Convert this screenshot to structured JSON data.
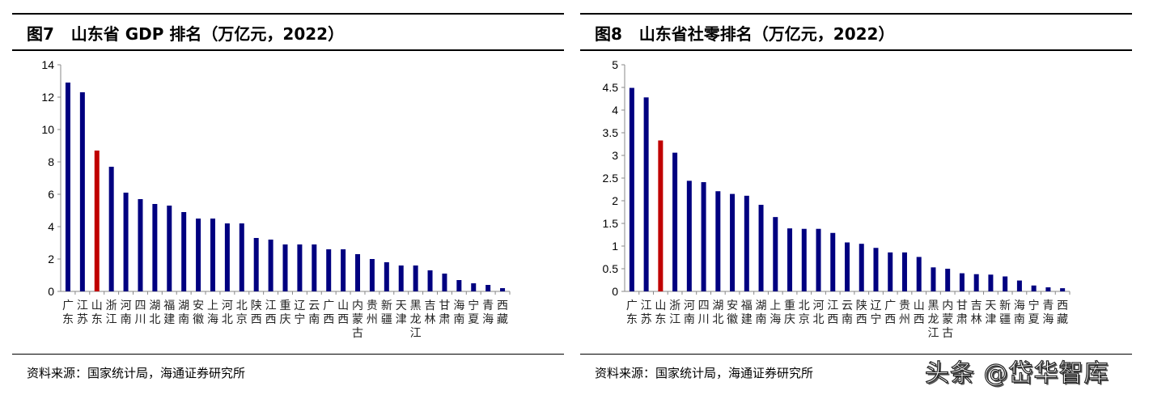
{
  "watermark": "头条 @岱华智库",
  "chart_data": [
    {
      "type": "bar",
      "title": "图7   山东省 GDP 排名（万亿元，2022）",
      "source": "资料来源：国家统计局，海通证券研究所",
      "xlabel": "",
      "ylabel": "",
      "ylim": [
        0,
        14
      ],
      "yticks": [
        "0",
        "2",
        "4",
        "6",
        "8",
        "10",
        "12",
        "14"
      ],
      "highlight": "山东",
      "colors": {
        "bar": "#000080",
        "highlight": "#C00000"
      },
      "categories": [
        "广东",
        "江苏",
        "山东",
        "浙江",
        "河南",
        "四川",
        "湖北",
        "福建",
        "湖南",
        "安徽",
        "上海",
        "河北",
        "北京",
        "陕西",
        "江西",
        "重庆",
        "辽宁",
        "云南",
        "广西",
        "山西",
        "内蒙古",
        "贵州",
        "新疆",
        "天津",
        "黑龙江",
        "吉林",
        "甘肃",
        "海南",
        "宁夏",
        "青海",
        "西藏"
      ],
      "values": [
        12.9,
        12.3,
        8.7,
        7.7,
        6.1,
        5.7,
        5.4,
        5.3,
        4.9,
        4.5,
        4.5,
        4.2,
        4.2,
        3.3,
        3.2,
        2.9,
        2.9,
        2.9,
        2.6,
        2.6,
        2.3,
        2.0,
        1.8,
        1.6,
        1.6,
        1.3,
        1.1,
        0.7,
        0.5,
        0.4,
        0.2
      ]
    },
    {
      "type": "bar",
      "title": "图8   山东省社零排名（万亿元，2022）",
      "source": "资料来源：国家统计局，海通证券研究所",
      "xlabel": "",
      "ylabel": "",
      "ylim": [
        0,
        5
      ],
      "yticks": [
        "0",
        "0.5",
        "1",
        "1.5",
        "2",
        "2.5",
        "3",
        "3.5",
        "4",
        "4.5",
        "5"
      ],
      "highlight": "山东",
      "colors": {
        "bar": "#000080",
        "highlight": "#C00000"
      },
      "categories": [
        "广东",
        "江苏",
        "山东",
        "浙江",
        "河南",
        "四川",
        "湖北",
        "安徽",
        "福建",
        "湖南",
        "上海",
        "重庆",
        "北京",
        "河北",
        "江西",
        "云南",
        "陕西",
        "辽宁",
        "广西",
        "贵州",
        "山西",
        "黑龙江",
        "内蒙古",
        "甘肃",
        "吉林",
        "天津",
        "新疆",
        "海南",
        "宁夏",
        "青海",
        "西藏"
      ],
      "values": [
        4.49,
        4.28,
        3.33,
        3.06,
        2.44,
        2.41,
        2.21,
        2.15,
        2.11,
        1.91,
        1.64,
        1.39,
        1.38,
        1.38,
        1.29,
        1.08,
        1.05,
        0.96,
        0.86,
        0.86,
        0.76,
        0.53,
        0.5,
        0.4,
        0.38,
        0.37,
        0.33,
        0.24,
        0.13,
        0.09,
        0.07
      ]
    }
  ]
}
